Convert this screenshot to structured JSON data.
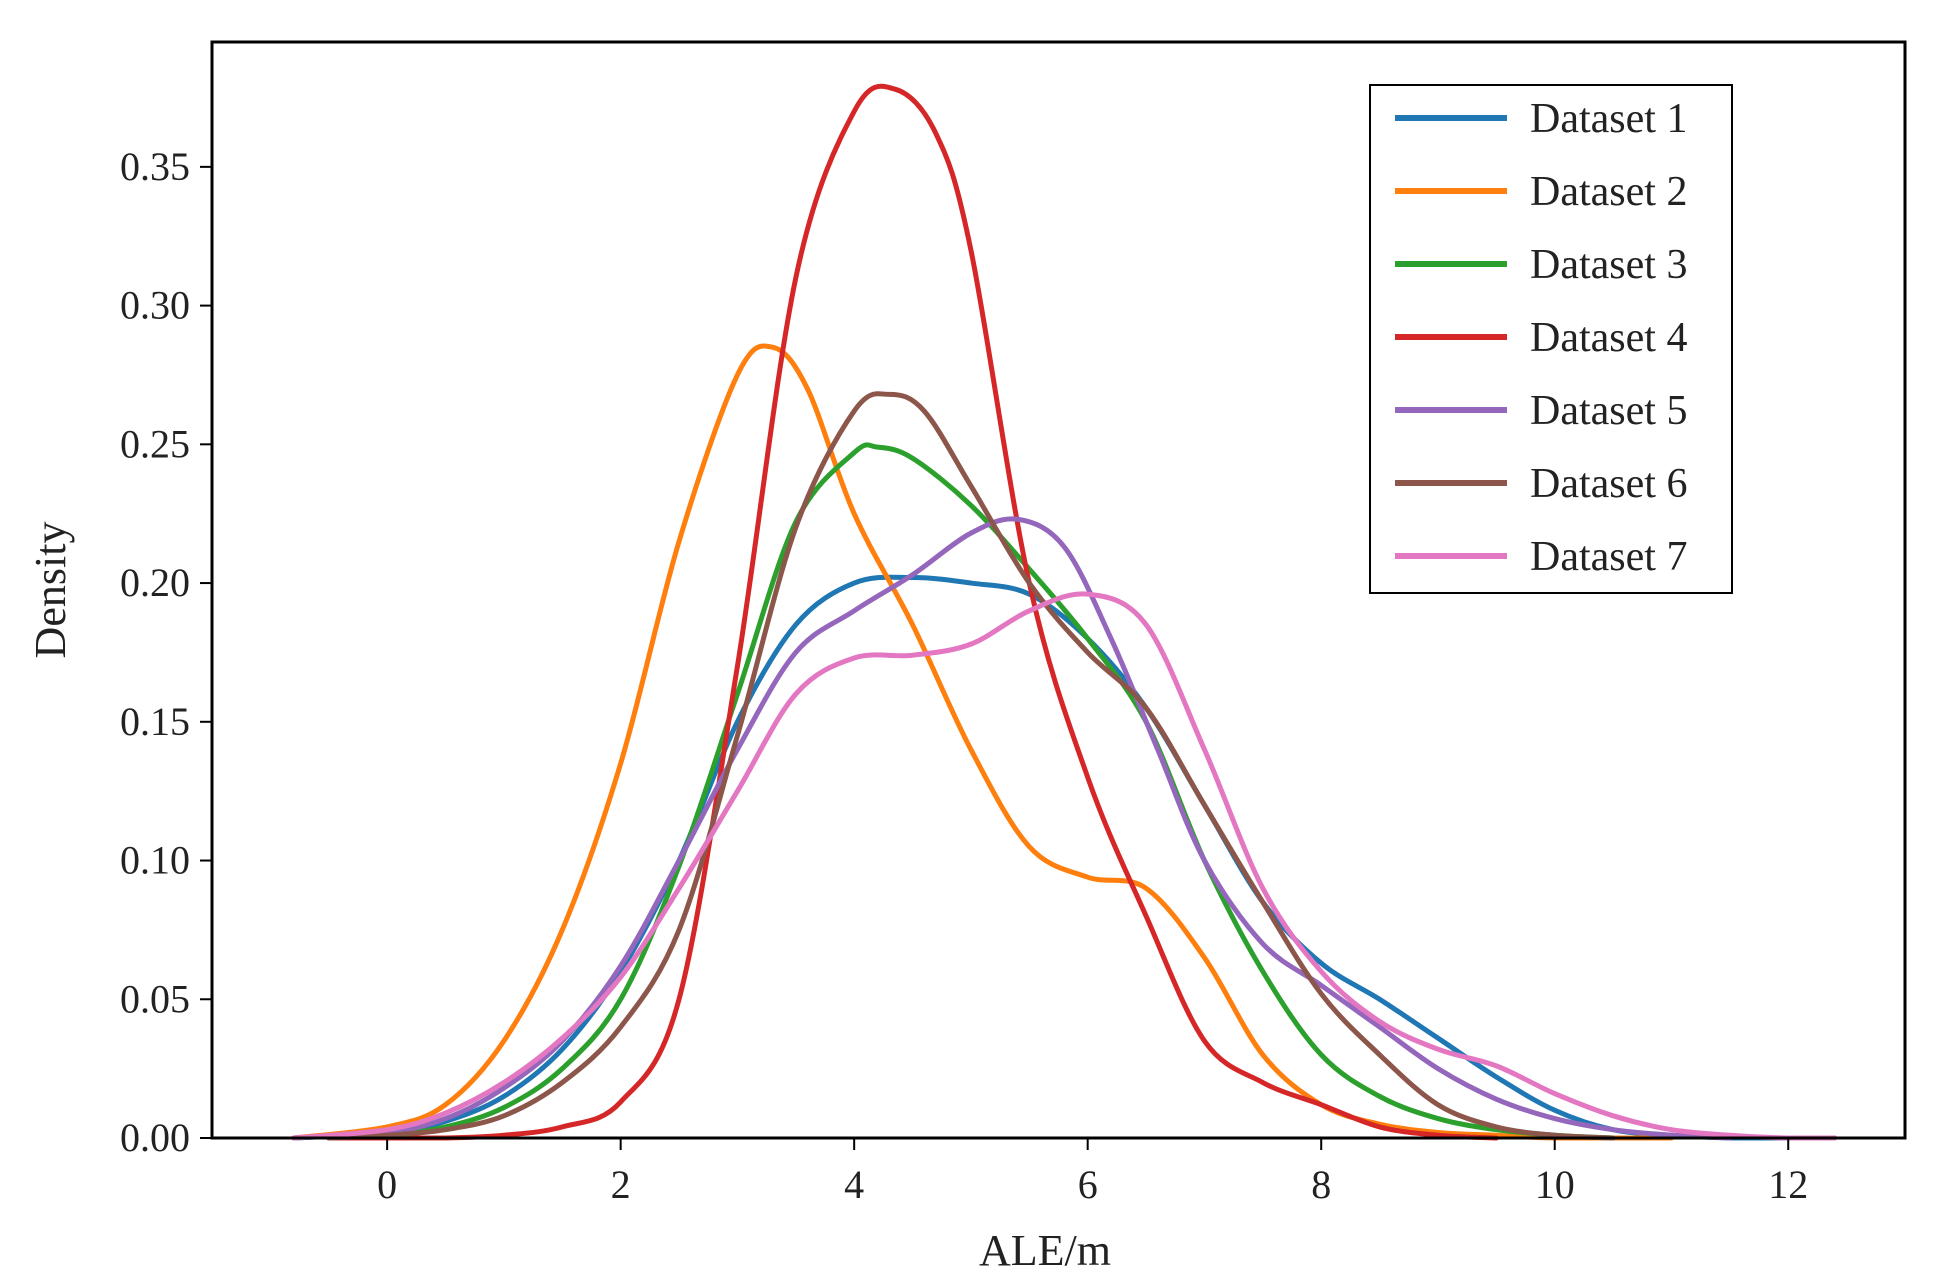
{
  "chart_data": {
    "type": "line",
    "title": "",
    "xlabel": "ALE/m",
    "ylabel": "Density",
    "xlim": [
      -1.5,
      13
    ],
    "ylim": [
      0,
      0.395
    ],
    "xticks": [
      0,
      2,
      4,
      6,
      8,
      10,
      12
    ],
    "xtick_labels": [
      "0",
      "2",
      "4",
      "6",
      "8",
      "10",
      "12"
    ],
    "yticks": [
      0,
      0.05,
      0.1,
      0.15,
      0.2,
      0.25,
      0.3,
      0.35
    ],
    "ytick_labels": [
      "0.00",
      "0.05",
      "0.10",
      "0.15",
      "0.20",
      "0.25",
      "0.30",
      "0.35"
    ],
    "grid": false,
    "legend_position": "top-right",
    "series": [
      {
        "name": "Dataset 1",
        "color": "#1f77b4",
        "x": [
          -0.8,
          0,
          0.5,
          1,
          1.5,
          2,
          2.5,
          3,
          3.5,
          4,
          4.5,
          5,
          5.5,
          6,
          6.5,
          7,
          7.5,
          8,
          8.5,
          9,
          9.5,
          10,
          10.5,
          11,
          11.5,
          12
        ],
        "y": [
          0.0,
          0.002,
          0.006,
          0.015,
          0.032,
          0.06,
          0.1,
          0.15,
          0.185,
          0.2,
          0.202,
          0.2,
          0.196,
          0.18,
          0.155,
          0.12,
          0.085,
          0.063,
          0.05,
          0.036,
          0.022,
          0.01,
          0.003,
          0.001,
          0.0,
          0.0
        ]
      },
      {
        "name": "Dataset 2",
        "color": "#ff7f0e",
        "x": [
          -0.8,
          0,
          0.5,
          1,
          1.5,
          2,
          2.5,
          3,
          3.3,
          3.6,
          4,
          4.5,
          5,
          5.5,
          6,
          6.5,
          7,
          7.5,
          8,
          8.5,
          9,
          9.5,
          10,
          11
        ],
        "y": [
          0.0,
          0.004,
          0.012,
          0.035,
          0.075,
          0.135,
          0.215,
          0.275,
          0.285,
          0.27,
          0.225,
          0.185,
          0.14,
          0.105,
          0.094,
          0.09,
          0.065,
          0.03,
          0.012,
          0.005,
          0.002,
          0.001,
          0.0,
          0.0
        ]
      },
      {
        "name": "Dataset 3",
        "color": "#2ca02c",
        "x": [
          -0.5,
          0,
          0.5,
          1,
          1.5,
          2,
          2.5,
          3,
          3.5,
          4,
          4.2,
          4.5,
          5,
          5.5,
          6,
          6.5,
          7,
          7.5,
          8,
          8.5,
          9,
          9.5,
          10,
          10.5
        ],
        "y": [
          0.0,
          0.001,
          0.004,
          0.011,
          0.025,
          0.05,
          0.098,
          0.16,
          0.222,
          0.247,
          0.249,
          0.245,
          0.228,
          0.205,
          0.18,
          0.15,
          0.1,
          0.06,
          0.03,
          0.015,
          0.007,
          0.003,
          0.001,
          0.0
        ]
      },
      {
        "name": "Dataset 4",
        "color": "#d62728",
        "x": [
          -0.5,
          0,
          0.5,
          1,
          1.5,
          2,
          2.5,
          3,
          3.5,
          4,
          4.35,
          4.7,
          5,
          5.5,
          6,
          6.5,
          7,
          7.5,
          8,
          8.5,
          9,
          9.5
        ],
        "y": [
          0.0,
          0.0,
          0.0,
          0.001,
          0.004,
          0.013,
          0.05,
          0.17,
          0.31,
          0.37,
          0.378,
          0.362,
          0.32,
          0.2,
          0.13,
          0.08,
          0.035,
          0.02,
          0.012,
          0.004,
          0.001,
          0.0
        ]
      },
      {
        "name": "Dataset 5",
        "color": "#9467bd",
        "x": [
          -0.8,
          0,
          0.5,
          1,
          1.5,
          2,
          2.5,
          3,
          3.5,
          4,
          4.5,
          5,
          5.4,
          5.8,
          6.2,
          6.6,
          7,
          7.5,
          8,
          8.5,
          9,
          9.5,
          10,
          10.5,
          11,
          11.5
        ],
        "y": [
          0.0,
          0.002,
          0.007,
          0.018,
          0.035,
          0.062,
          0.1,
          0.14,
          0.175,
          0.19,
          0.203,
          0.218,
          0.223,
          0.213,
          0.18,
          0.14,
          0.1,
          0.07,
          0.055,
          0.04,
          0.025,
          0.014,
          0.007,
          0.003,
          0.001,
          0.0
        ]
      },
      {
        "name": "Dataset 6",
        "color": "#8c564b",
        "x": [
          -0.5,
          0,
          0.5,
          1,
          1.5,
          2,
          2.5,
          3,
          3.5,
          4,
          4.3,
          4.6,
          5,
          5.5,
          6,
          6.5,
          7,
          7.5,
          8,
          8.5,
          9,
          9.5,
          10,
          10.5
        ],
        "y": [
          0.0,
          0.001,
          0.003,
          0.008,
          0.02,
          0.04,
          0.075,
          0.145,
          0.22,
          0.262,
          0.268,
          0.262,
          0.235,
          0.2,
          0.175,
          0.155,
          0.12,
          0.085,
          0.052,
          0.03,
          0.012,
          0.004,
          0.001,
          0.0
        ]
      },
      {
        "name": "Dataset 7",
        "color": "#e377c2",
        "x": [
          -0.8,
          0,
          0.5,
          1,
          1.5,
          2,
          2.5,
          3,
          3.5,
          4,
          4.5,
          5,
          5.5,
          6,
          6.5,
          7,
          7.5,
          8,
          8.5,
          9,
          9.5,
          10,
          10.5,
          11,
          11.5,
          12,
          12.4
        ],
        "y": [
          0.0,
          0.003,
          0.009,
          0.02,
          0.036,
          0.058,
          0.09,
          0.125,
          0.16,
          0.173,
          0.174,
          0.178,
          0.19,
          0.196,
          0.185,
          0.14,
          0.09,
          0.06,
          0.042,
          0.032,
          0.026,
          0.016,
          0.008,
          0.003,
          0.001,
          0.0,
          0.0
        ]
      }
    ]
  }
}
